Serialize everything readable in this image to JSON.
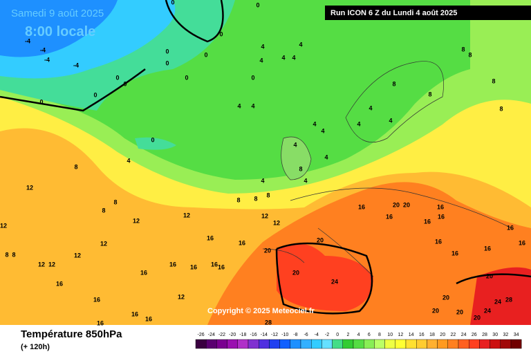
{
  "header": {
    "date": "Samedi 9 août 2025",
    "time": "8:00 locale",
    "run": "Run ICON 6 Z du Lundi 4 août 2025"
  },
  "copyright": "Copyright © 2025 Meteociel.fr",
  "footer": {
    "title": "Température 850hPa",
    "lead": "(+ 120h)"
  },
  "legend": {
    "values": [
      -26,
      -24,
      -22,
      -20,
      -18,
      -16,
      -14,
      -12,
      -10,
      -8,
      -6,
      -4,
      -2,
      0,
      2,
      4,
      6,
      8,
      10,
      12,
      14,
      16,
      18,
      20,
      22,
      24,
      26,
      28,
      30,
      32,
      34
    ],
    "colors": [
      "#3a0040",
      "#5a0070",
      "#7a0090",
      "#9a10b0",
      "#b030c8",
      "#8030d0",
      "#5030e0",
      "#2040f0",
      "#1060ff",
      "#1e90ff",
      "#33b0ff",
      "#33ccff",
      "#66e0ff",
      "#44dd88",
      "#33cc33",
      "#55dd44",
      "#88ee55",
      "#bbff66",
      "#eeff44",
      "#ffff33",
      "#ffe030",
      "#ffcc30",
      "#ffb030",
      "#ff9a20",
      "#ff8020",
      "#ff6020",
      "#ff4020",
      "#e82020",
      "#cc1010",
      "#a00808",
      "#700000"
    ]
  },
  "isotherm_labels": [
    0,
    0,
    0,
    0,
    0,
    0,
    0,
    0,
    0,
    0,
    0,
    0,
    0,
    -4,
    -4,
    -4,
    -4,
    4,
    4,
    4,
    4,
    4,
    4,
    4,
    4,
    4,
    4,
    4,
    4,
    4,
    4,
    4,
    4,
    4,
    8,
    8,
    8,
    8,
    8,
    8,
    8,
    8,
    8,
    8,
    8,
    8,
    8,
    12,
    12,
    12,
    12,
    12,
    12,
    12,
    12,
    12,
    12,
    12,
    16,
    16,
    16,
    16,
    16,
    16,
    16,
    16,
    16,
    16,
    16,
    16,
    16,
    16,
    16,
    16,
    16,
    16,
    16,
    16,
    16,
    16,
    20,
    20,
    20,
    20,
    20,
    20,
    20,
    20,
    20,
    20,
    24,
    24,
    24,
    28,
    28,
    8,
    8
  ]
}
